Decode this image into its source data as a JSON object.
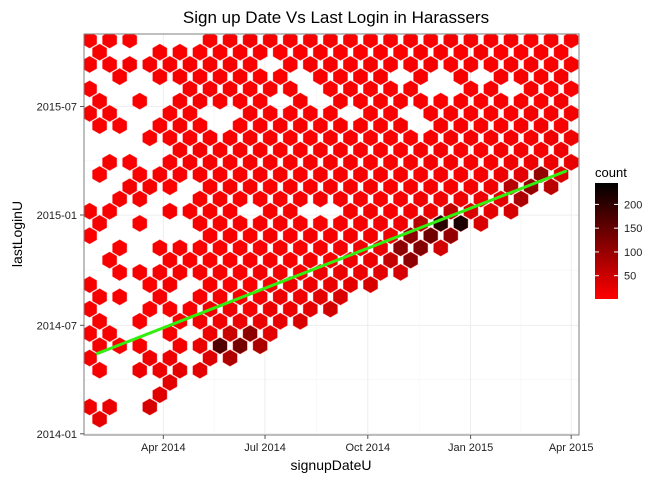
{
  "chart_data": {
    "type": "hexbin",
    "title": "Sign up Date Vs Last Login in Harassers",
    "xlabel": "signupDateU",
    "ylabel": "lastLoginU",
    "x_ticks": [
      "Apr 2014",
      "Jul 2014",
      "Oct 2014",
      "Jan 2015",
      "Apr 2015"
    ],
    "x_tick_dates": [
      "2014-04-01",
      "2014-07-01",
      "2014-10-01",
      "2015-01-01",
      "2015-04-01"
    ],
    "y_ticks": [
      "2014-01",
      "2014-07",
      "2015-01",
      "2015-07"
    ],
    "y_tick_dates": [
      "2014-01-01",
      "2014-07-01",
      "2015-01-01",
      "2015-07-01"
    ],
    "xlim": [
      "2014-01-20",
      "2015-04-08"
    ],
    "ylim": [
      "2013-12-30",
      "2015-10-30"
    ],
    "grid": true,
    "legend": {
      "title": "count",
      "labels": [
        "50",
        "100",
        "150",
        "200"
      ],
      "values": [
        50,
        100,
        150,
        200
      ],
      "count_range": [
        1,
        245
      ],
      "placement": "right"
    },
    "color_low": "#ff0000",
    "color_high": "#000000",
    "trend_line": {
      "color": "#33ee11",
      "start": {
        "x": "2014-02-01",
        "y": "2014-05-15"
      },
      "end": {
        "x": "2015-03-27",
        "y": "2015-03-15"
      }
    },
    "bins": {
      "x_range": [
        "2014-01-25",
        "2015-04-05"
      ],
      "y_range": [
        "2014-01-05",
        "2015-10-20"
      ],
      "rows": 33,
      "max_count": 245,
      "hotspots": [
        {
          "x": "2014-05-28",
          "y": "2014-05-25",
          "count": 200
        },
        {
          "x": "2014-06-14",
          "y": "2014-06-05",
          "count": 180
        },
        {
          "x": "2014-12-04",
          "y": "2014-12-10",
          "count": 245
        },
        {
          "x": "2014-12-19",
          "y": "2014-12-18",
          "count": 235
        },
        {
          "x": "2014-11-19",
          "y": "2014-11-20",
          "count": 200
        },
        {
          "x": "2014-11-04",
          "y": "2014-10-28",
          "count": 160
        },
        {
          "x": "2015-02-18",
          "y": "2015-02-10",
          "count": 140
        },
        {
          "x": "2015-03-06",
          "y": "2015-03-01",
          "count": 130
        }
      ],
      "empty_bins": [
        {
          "x": "2014-02-26",
          "y": "2015-01-15"
        },
        {
          "x": "2014-02-26",
          "y": "2014-09-10"
        },
        {
          "x": "2014-03-07",
          "y": "2014-08-20"
        },
        {
          "x": "2014-02-18",
          "y": "2014-02-28"
        },
        {
          "x": "2014-04-26",
          "y": "2015-02-08"
        },
        {
          "x": "2014-04-23",
          "y": "2015-01-20"
        },
        {
          "x": "2014-05-22",
          "y": "2015-06-10"
        },
        {
          "x": "2014-06-10",
          "y": "2015-01-05"
        },
        {
          "x": "2014-06-28",
          "y": "2015-09-15"
        },
        {
          "x": "2014-07-15",
          "y": "2015-07-15"
        },
        {
          "x": "2014-08-08",
          "y": "2015-08-25"
        },
        {
          "x": "2014-08-05",
          "y": "2015-07-25"
        },
        {
          "x": "2014-08-12",
          "y": "2015-07-10"
        },
        {
          "x": "2014-08-20",
          "y": "2015-01-10"
        },
        {
          "x": "2014-09-08",
          "y": "2015-06-20"
        },
        {
          "x": "2014-10-24",
          "y": "2015-08-25"
        },
        {
          "x": "2014-11-03",
          "y": "2015-08-25"
        },
        {
          "x": "2014-11-13",
          "y": "2015-06-10"
        },
        {
          "x": "2014-12-06",
          "y": "2015-08-10"
        },
        {
          "x": "2015-01-15",
          "y": "2015-08-25"
        },
        {
          "x": "2015-02-06",
          "y": "2015-08-05"
        }
      ]
    }
  }
}
